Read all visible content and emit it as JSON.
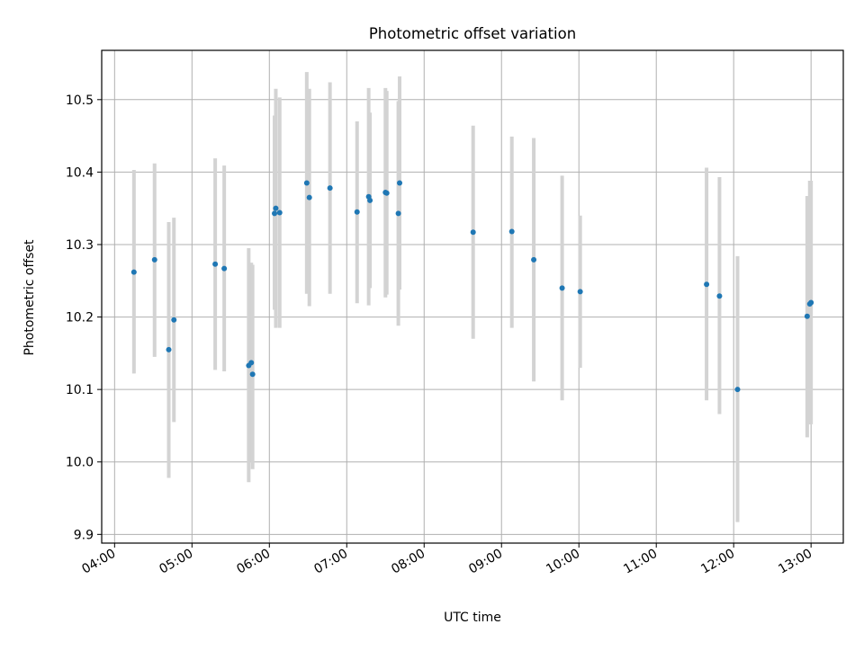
{
  "chart_data": {
    "type": "scatter",
    "title": "Photometric offset variation",
    "xlabel": "UTC time",
    "ylabel": "Photometric offset",
    "xlim": [
      "03:50",
      "13:25"
    ],
    "ylim": [
      9.888,
      10.568
    ],
    "x_ticks": [
      "04:00",
      "05:00",
      "06:00",
      "07:00",
      "08:00",
      "09:00",
      "10:00",
      "11:00",
      "12:00",
      "13:00"
    ],
    "y_ticks": [
      "9.9",
      "10.0",
      "10.1",
      "10.2",
      "10.3",
      "10.4",
      "10.5"
    ],
    "grid": true,
    "point_color": "#1f77b4",
    "errorbar_color": "#d3d3d3",
    "points": [
      {
        "time": "04:15",
        "value": 10.262,
        "low": 10.122,
        "high": 10.403
      },
      {
        "time": "04:31",
        "value": 10.279,
        "low": 10.145,
        "high": 10.412
      },
      {
        "time": "04:42",
        "value": 10.155,
        "low": 9.978,
        "high": 10.331
      },
      {
        "time": "04:46",
        "value": 10.196,
        "low": 10.055,
        "high": 10.337
      },
      {
        "time": "05:18",
        "value": 10.273,
        "low": 10.127,
        "high": 10.419
      },
      {
        "time": "05:25",
        "value": 10.267,
        "low": 10.125,
        "high": 10.409
      },
      {
        "time": "05:44",
        "value": 10.133,
        "low": 9.972,
        "high": 10.295
      },
      {
        "time": "05:46",
        "value": 10.137,
        "low": 10.0,
        "high": 10.275
      },
      {
        "time": "05:47",
        "value": 10.121,
        "low": 9.99,
        "high": 10.272
      },
      {
        "time": "06:04",
        "value": 10.343,
        "low": 10.21,
        "high": 10.478
      },
      {
        "time": "06:05",
        "value": 10.35,
        "low": 10.185,
        "high": 10.515
      },
      {
        "time": "06:08",
        "value": 10.344,
        "low": 10.185,
        "high": 10.503
      },
      {
        "time": "06:29",
        "value": 10.385,
        "low": 10.232,
        "high": 10.538
      },
      {
        "time": "06:31",
        "value": 10.365,
        "low": 10.215,
        "high": 10.515
      },
      {
        "time": "06:47",
        "value": 10.378,
        "low": 10.232,
        "high": 10.524
      },
      {
        "time": "07:08",
        "value": 10.345,
        "low": 10.219,
        "high": 10.47
      },
      {
        "time": "07:17",
        "value": 10.366,
        "low": 10.216,
        "high": 10.516
      },
      {
        "time": "07:18",
        "value": 10.361,
        "low": 10.24,
        "high": 10.482
      },
      {
        "time": "07:30",
        "value": 10.372,
        "low": 10.227,
        "high": 10.516
      },
      {
        "time": "07:31",
        "value": 10.371,
        "low": 10.231,
        "high": 10.512
      },
      {
        "time": "07:40",
        "value": 10.343,
        "low": 10.188,
        "high": 10.498
      },
      {
        "time": "07:41",
        "value": 10.385,
        "low": 10.238,
        "high": 10.532
      },
      {
        "time": "08:38",
        "value": 10.317,
        "low": 10.17,
        "high": 10.464
      },
      {
        "time": "09:08",
        "value": 10.318,
        "low": 10.185,
        "high": 10.449
      },
      {
        "time": "09:25",
        "value": 10.279,
        "low": 10.111,
        "high": 10.447
      },
      {
        "time": "09:47",
        "value": 10.24,
        "low": 10.085,
        "high": 10.395
      },
      {
        "time": "10:01",
        "value": 10.235,
        "low": 10.13,
        "high": 10.34
      },
      {
        "time": "11:39",
        "value": 10.245,
        "low": 10.085,
        "high": 10.406
      },
      {
        "time": "11:49",
        "value": 10.229,
        "low": 10.066,
        "high": 10.393
      },
      {
        "time": "12:03",
        "value": 10.1,
        "low": 9.917,
        "high": 10.284
      },
      {
        "time": "12:57",
        "value": 10.201,
        "low": 10.034,
        "high": 10.367
      },
      {
        "time": "12:59",
        "value": 10.218,
        "low": 10.052,
        "high": 10.388
      },
      {
        "time": "13:00",
        "value": 10.22,
        "low": 10.052,
        "high": 10.388
      }
    ]
  }
}
